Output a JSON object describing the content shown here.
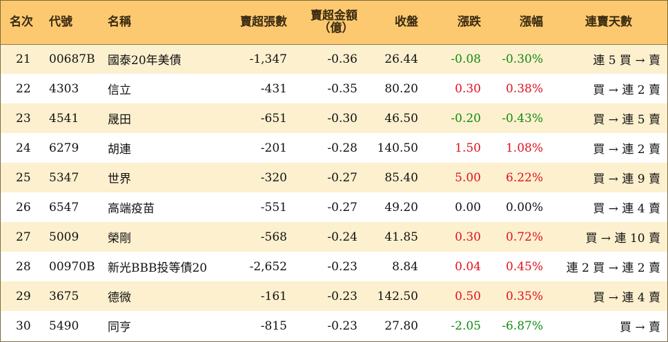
{
  "headers": {
    "rank": "名次",
    "code": "代號",
    "name": "名稱",
    "net_sell_shares": "賣超張數",
    "net_sell_amount_line1": "賣超金額",
    "net_sell_amount_line2": "（億）",
    "close": "收盤",
    "change": "漲跌",
    "change_pct": "漲幅",
    "consecutive_days": "連賣天數"
  },
  "rows": [
    {
      "rank": "21",
      "code": "00687B",
      "name": "國泰20年美債",
      "shares": "-1,347",
      "amount": "-0.36",
      "close": "26.44",
      "change": "-0.08",
      "pct": "-0.30%",
      "trend": "down",
      "days": "連 5 買 → 賣"
    },
    {
      "rank": "22",
      "code": "4303",
      "name": "信立",
      "shares": "-431",
      "amount": "-0.35",
      "close": "80.20",
      "change": "0.30",
      "pct": "0.38%",
      "trend": "up",
      "days": "買 → 連 2 賣"
    },
    {
      "rank": "23",
      "code": "4541",
      "name": "晟田",
      "shares": "-651",
      "amount": "-0.30",
      "close": "46.50",
      "change": "-0.20",
      "pct": "-0.43%",
      "trend": "down",
      "days": "買 → 連 5 賣"
    },
    {
      "rank": "24",
      "code": "6279",
      "name": "胡連",
      "shares": "-201",
      "amount": "-0.28",
      "close": "140.50",
      "change": "1.50",
      "pct": "1.08%",
      "trend": "up",
      "days": "買 → 連 2 賣"
    },
    {
      "rank": "25",
      "code": "5347",
      "name": "世界",
      "shares": "-320",
      "amount": "-0.27",
      "close": "85.40",
      "change": "5.00",
      "pct": "6.22%",
      "trend": "up",
      "days": "買 → 連 9 賣"
    },
    {
      "rank": "26",
      "code": "6547",
      "name": "高端疫苗",
      "shares": "-551",
      "amount": "-0.27",
      "close": "49.20",
      "change": "0.00",
      "pct": "0.00%",
      "trend": "flat",
      "days": "買 → 連 4 賣"
    },
    {
      "rank": "27",
      "code": "5009",
      "name": "榮剛",
      "shares": "-568",
      "amount": "-0.24",
      "close": "41.85",
      "change": "0.30",
      "pct": "0.72%",
      "trend": "up",
      "days": "買 → 連 10 賣"
    },
    {
      "rank": "28",
      "code": "00970B",
      "name": "新光BBB投等債20",
      "shares": "-2,652",
      "amount": "-0.23",
      "close": "8.84",
      "change": "0.04",
      "pct": "0.45%",
      "trend": "up",
      "days": "連 2 買 → 連 2 賣"
    },
    {
      "rank": "29",
      "code": "3675",
      "name": "德微",
      "shares": "-161",
      "amount": "-0.23",
      "close": "142.50",
      "change": "0.50",
      "pct": "0.35%",
      "trend": "up",
      "days": "買 → 連 4 賣"
    },
    {
      "rank": "30",
      "code": "5490",
      "name": "同亨",
      "shares": "-815",
      "amount": "-0.23",
      "close": "27.80",
      "change": "-2.05",
      "pct": "-6.87%",
      "trend": "down",
      "days": "買 → 賣"
    }
  ],
  "colors": {
    "header_bg": "#fcc970",
    "row_odd_bg": "#fdf0cf",
    "row_even_bg": "#ffffff",
    "up": "#e0101e",
    "down": "#138a13"
  }
}
